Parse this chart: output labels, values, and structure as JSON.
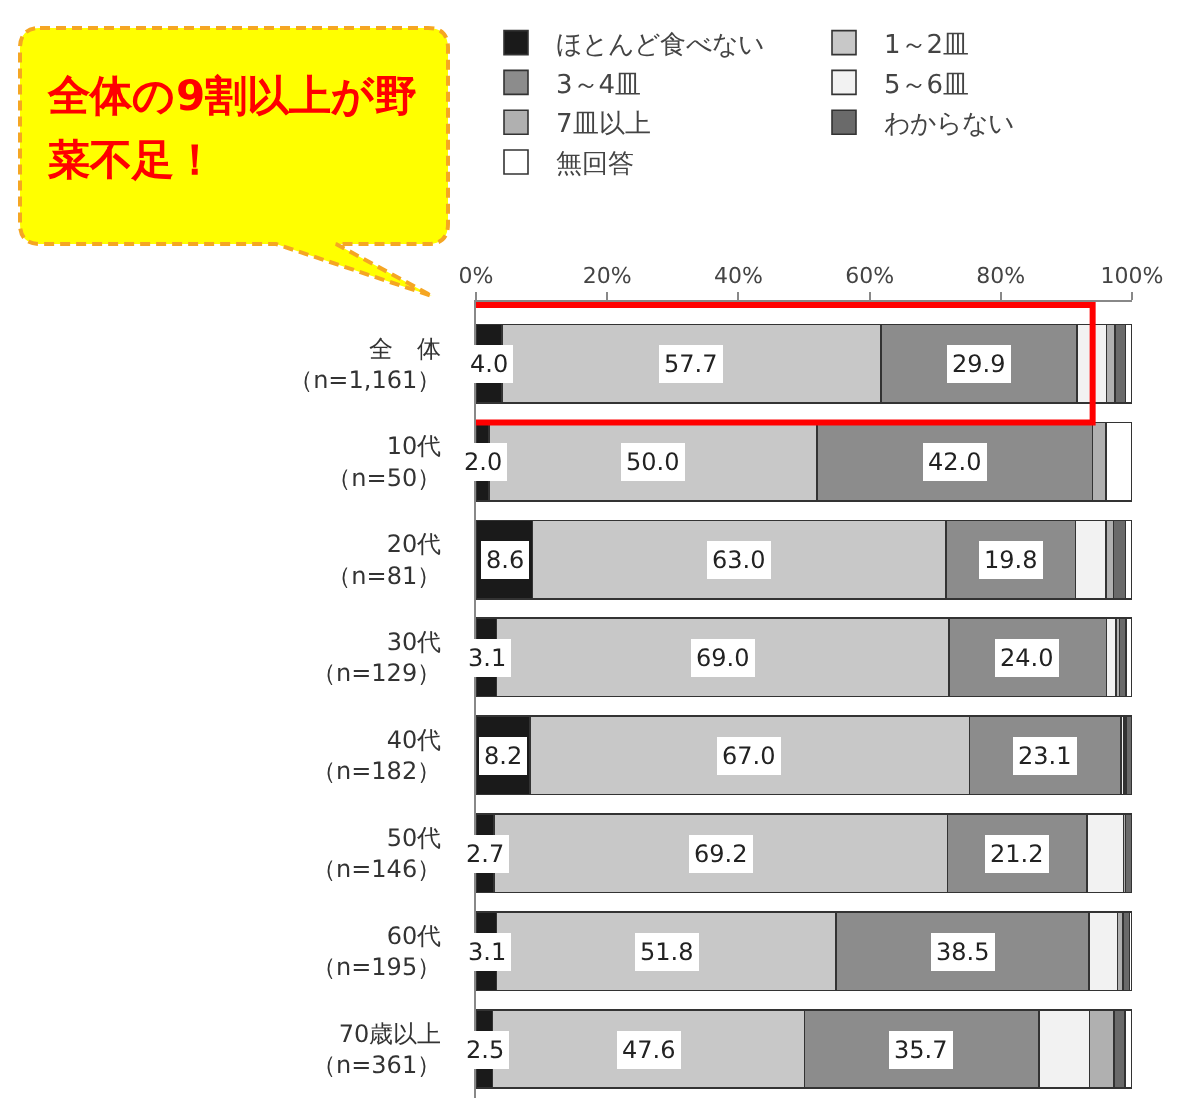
{
  "chart_data": {
    "type": "bar",
    "orientation": "horizontal",
    "stacked": true,
    "annotations": [
      "全体の9割以上が野菜不足！"
    ],
    "categories": [
      "全　体（n=1,161）",
      "10代（n=50）",
      "20代（n=81）",
      "30代（n=129）",
      "40代（n=182）",
      "50代（n=146）",
      "60代（n=195）",
      "70歳以上（n=361）"
    ],
    "series": [
      {
        "name": "ほとんど食べない",
        "color": "#1a1a1a",
        "values": [
          4.0,
          2.0,
          8.6,
          3.1,
          8.2,
          2.7,
          3.1,
          2.5
        ],
        "value_labels": [
          "4.0",
          "2.0",
          "8.6",
          "3.1",
          "8.2",
          "2.7",
          "3.1",
          "2.5"
        ]
      },
      {
        "name": "1～2皿",
        "color": "#c8c8c8",
        "values": [
          57.7,
          50.0,
          63.0,
          69.0,
          67.0,
          69.2,
          51.8,
          47.6
        ],
        "value_labels": [
          "57.7",
          "50.0",
          "63.0",
          "69.0",
          "67.0",
          "69.2",
          "51.8",
          "47.6"
        ]
      },
      {
        "name": "3～4皿",
        "color": "#8c8c8c",
        "values": [
          29.9,
          42.0,
          19.8,
          24.0,
          23.1,
          21.2,
          38.5,
          35.7
        ],
        "value_labels": [
          "29.9",
          "42.0",
          "19.8",
          "24.0",
          "23.1",
          "21.2",
          "38.5",
          "35.7"
        ]
      },
      {
        "name": "5～6皿",
        "color": "#f2f2f2",
        "values": [
          4.5,
          0,
          4.6,
          1.5,
          0.5,
          5.6,
          4.4,
          7.7
        ]
      },
      {
        "name": "7皿以上",
        "color": "#b0b0b0",
        "values": [
          1.3,
          2.0,
          1.2,
          0.5,
          0.3,
          0.3,
          0.8,
          3.8
        ]
      },
      {
        "name": "わからない",
        "color": "#6a6a6a",
        "values": [
          1.6,
          0,
          1.8,
          1.0,
          0.9,
          1.0,
          1.0,
          1.6
        ]
      },
      {
        "name": "無回答",
        "color": "#ffffff",
        "values": [
          1.0,
          4.0,
          1.0,
          0.9,
          0,
          0,
          0.4,
          1.1
        ]
      }
    ],
    "xlim": [
      0,
      100
    ],
    "xticks": [
      {
        "value": 0,
        "label": "0%"
      },
      {
        "value": 20,
        "label": "20%"
      },
      {
        "value": 40,
        "label": "40%"
      },
      {
        "value": 60,
        "label": "60%"
      },
      {
        "value": 80,
        "label": "80%"
      },
      {
        "value": 100,
        "label": "100%"
      }
    ],
    "legend": "top",
    "grid": false
  }
}
